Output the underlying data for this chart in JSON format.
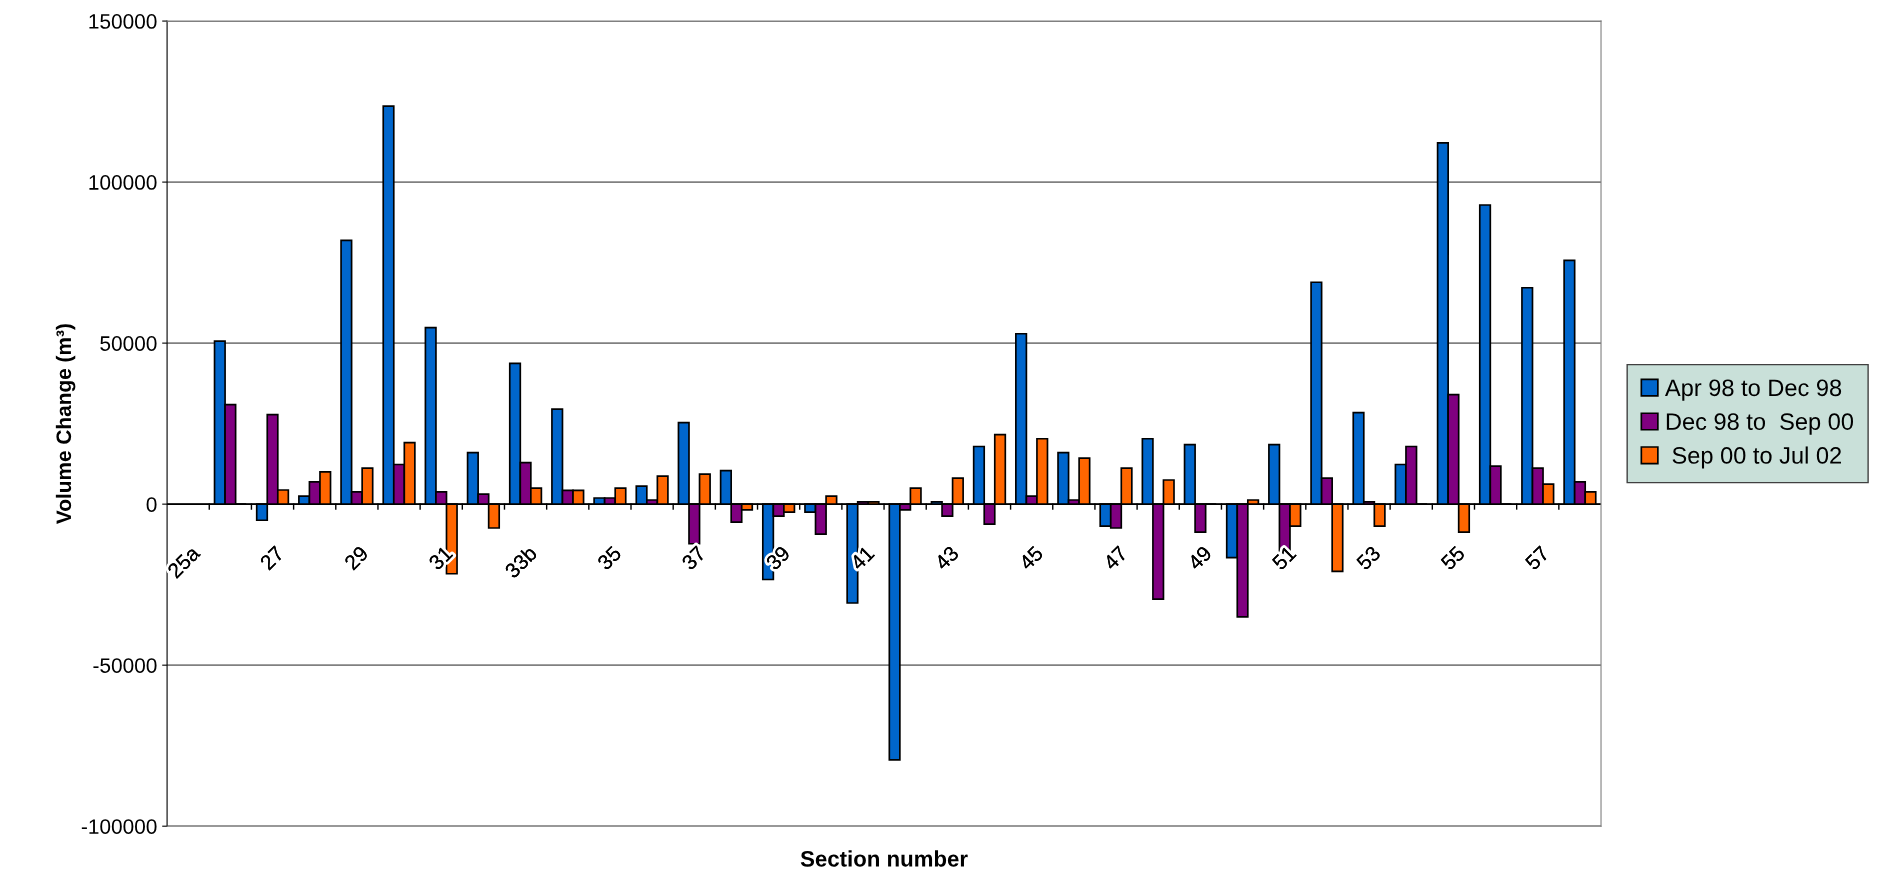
{
  "chart_data": {
    "type": "bar",
    "xlabel": "Section number",
    "ylabel": "Volume Change (m³)",
    "categories": [
      "25a",
      null,
      "27",
      null,
      "29",
      null,
      "31",
      null,
      "33b",
      null,
      "35",
      null,
      "37",
      null,
      "39",
      null,
      "41",
      null,
      "43",
      null,
      "45",
      null,
      "47",
      null,
      "49",
      null,
      "51",
      null,
      "53",
      null,
      "55",
      null,
      "57",
      null
    ],
    "series": [
      {
        "name": "Apr 98 to Dec 98",
        "color": "#0066cc",
        "values": [
          null,
          50600,
          -5000,
          2500,
          81900,
          123600,
          54800,
          16000,
          43700,
          29500,
          1900,
          5600,
          25300,
          10400,
          -23400,
          -2500,
          -30700,
          -79400,
          700,
          17900,
          52900,
          16000,
          -6800,
          20300,
          18500,
          -16600,
          18500,
          68900,
          28400,
          12300,
          112200,
          92900,
          67200,
          75700
        ]
      },
      {
        "name": "Dec 98 to  Sep 00",
        "color": "#800080",
        "values": [
          null,
          30900,
          27800,
          6900,
          3800,
          12300,
          3800,
          3100,
          12900,
          4300,
          1900,
          1300,
          -12300,
          -5600,
          -3700,
          -9300,
          700,
          -1800,
          -3700,
          -6200,
          2500,
          1300,
          -7400,
          -29500,
          -8700,
          -35000,
          -14700,
          8100,
          700,
          17900,
          34000,
          11800,
          11200,
          6900
        ]
      },
      {
        "name": " Sep 00 to Jul 02",
        "color": "#ff6600",
        "values": [
          null,
          0,
          4400,
          10000,
          11200,
          19100,
          -21600,
          -7400,
          5000,
          4300,
          5000,
          8700,
          9300,
          -1800,
          -2500,
          2500,
          700,
          5000,
          8100,
          21600,
          20300,
          14300,
          11200,
          7500,
          0,
          1300,
          -6800,
          -20900,
          -6800,
          0,
          -8700,
          0,
          6200,
          3800
        ]
      }
    ],
    "ylim": [
      -100000,
      150000
    ],
    "yticks": [
      -100000,
      -50000,
      0,
      50000,
      100000,
      150000
    ],
    "grid": "y",
    "legend": "right"
  }
}
